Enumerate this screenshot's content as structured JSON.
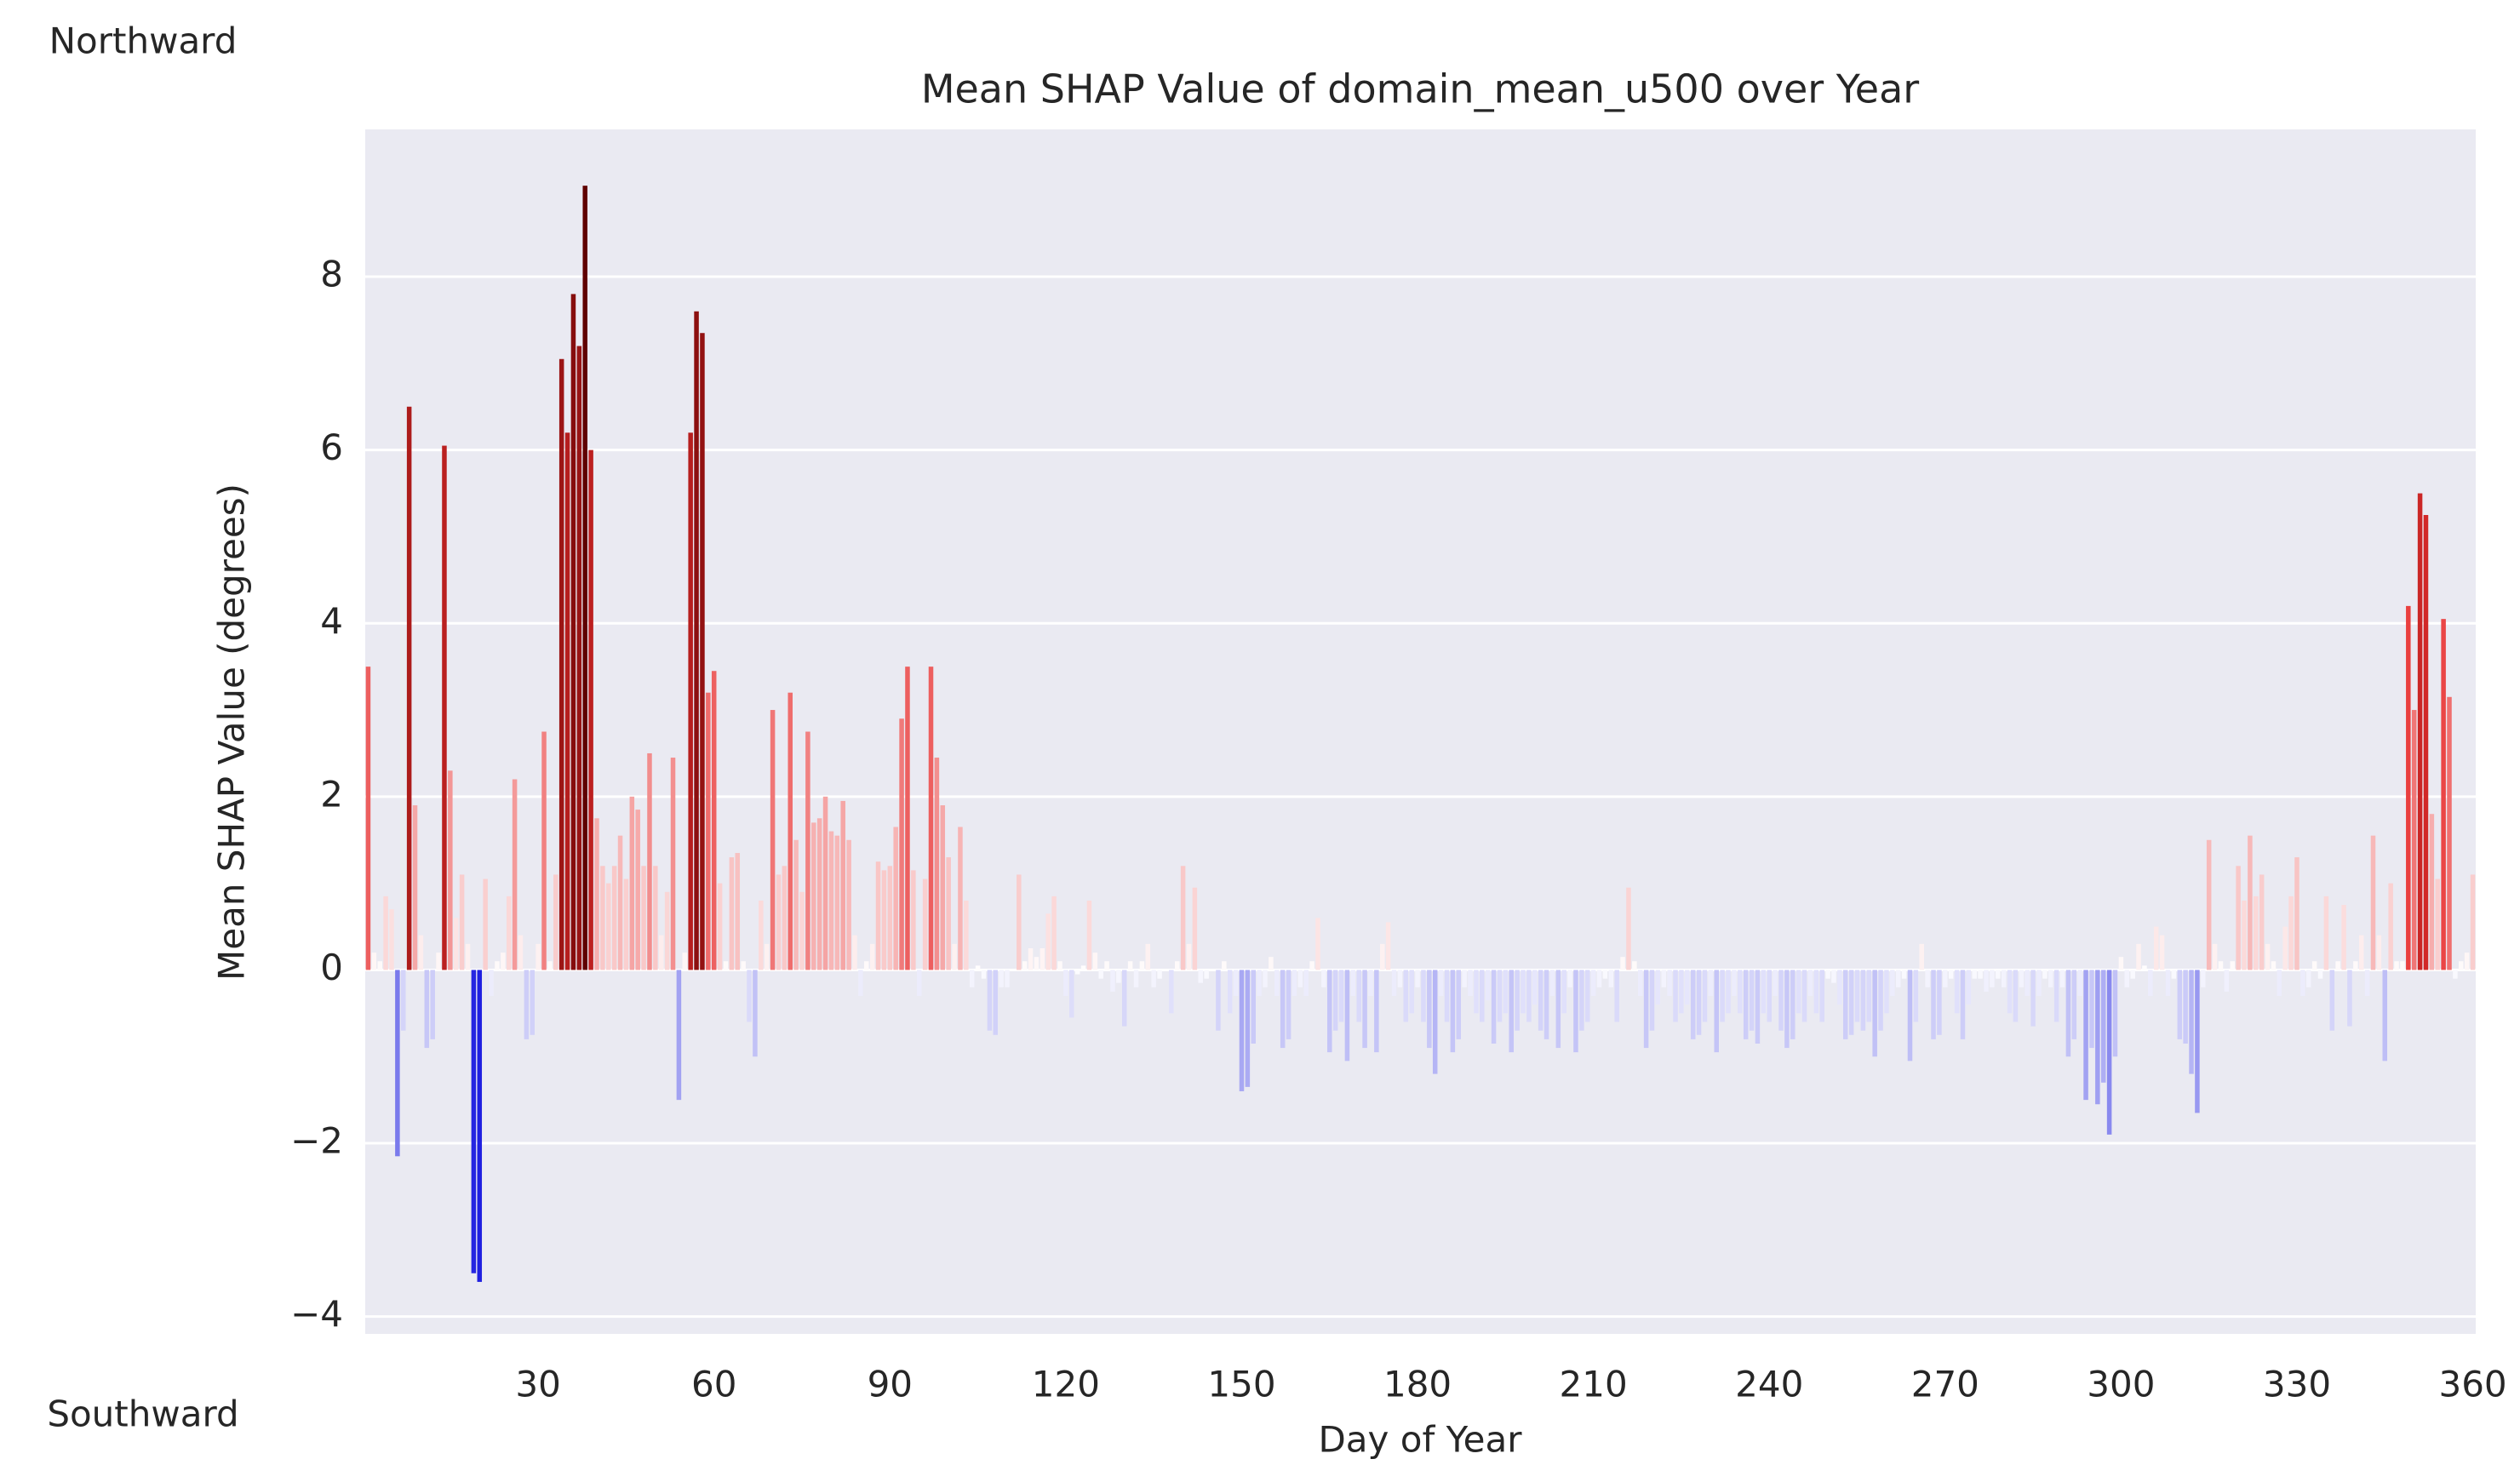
{
  "chart_data": {
    "type": "bar",
    "title": "Mean SHAP Value of domain_mean_u500 over Year",
    "x_label": "Day of Year",
    "y_label": "Mean SHAP Value (degrees)",
    "annotations": [
      "Northward",
      "Southward"
    ],
    "xlim": [
      0.5,
      360.5
    ],
    "ylim": [
      -4.2,
      9.7
    ],
    "xticks": [
      30,
      60,
      90,
      120,
      150,
      180,
      210,
      240,
      270,
      300,
      330,
      360
    ],
    "yticks": [
      {
        "value": -4,
        "label": "−4"
      },
      {
        "value": -2,
        "label": "−2"
      },
      0,
      2,
      4,
      6,
      8
    ],
    "grid": true,
    "colormap": [
      "#2020e0",
      "#ffffff",
      "#e83030",
      "#600000"
    ],
    "x": [
      1,
      2,
      3,
      4,
      5,
      6,
      7,
      8,
      9,
      10,
      11,
      12,
      13,
      14,
      15,
      16,
      17,
      18,
      19,
      20,
      21,
      22,
      23,
      24,
      25,
      26,
      27,
      28,
      29,
      30,
      31,
      32,
      33,
      34,
      35,
      36,
      37,
      38,
      39,
      40,
      41,
      42,
      43,
      44,
      45,
      46,
      47,
      48,
      49,
      50,
      51,
      52,
      53,
      54,
      55,
      56,
      57,
      58,
      59,
      60,
      61,
      62,
      63,
      64,
      65,
      66,
      67,
      68,
      69,
      70,
      71,
      72,
      73,
      74,
      75,
      76,
      77,
      78,
      79,
      80,
      81,
      82,
      83,
      84,
      85,
      86,
      87,
      88,
      89,
      90,
      91,
      92,
      93,
      94,
      95,
      96,
      97,
      98,
      99,
      100,
      101,
      102,
      103,
      104,
      105,
      106,
      107,
      108,
      109,
      110,
      111,
      112,
      113,
      114,
      115,
      116,
      117,
      118,
      119,
      120,
      121,
      122,
      123,
      124,
      125,
      126,
      127,
      128,
      129,
      130,
      131,
      132,
      133,
      134,
      135,
      136,
      137,
      138,
      139,
      140,
      141,
      142,
      143,
      144,
      145,
      146,
      147,
      148,
      149,
      150,
      151,
      152,
      153,
      154,
      155,
      156,
      157,
      158,
      159,
      160,
      161,
      162,
      163,
      164,
      165,
      166,
      167,
      168,
      169,
      170,
      171,
      172,
      173,
      174,
      175,
      176,
      177,
      178,
      179,
      180,
      181,
      182,
      183,
      184,
      185,
      186,
      187,
      188,
      189,
      190,
      191,
      192,
      193,
      194,
      195,
      196,
      197,
      198,
      199,
      200,
      201,
      202,
      203,
      204,
      205,
      206,
      207,
      208,
      209,
      210,
      211,
      212,
      213,
      214,
      215,
      216,
      217,
      218,
      219,
      220,
      221,
      222,
      223,
      224,
      225,
      226,
      227,
      228,
      229,
      230,
      231,
      232,
      233,
      234,
      235,
      236,
      237,
      238,
      239,
      240,
      241,
      242,
      243,
      244,
      245,
      246,
      247,
      248,
      249,
      250,
      251,
      252,
      253,
      254,
      255,
      256,
      257,
      258,
      259,
      260,
      261,
      262,
      263,
      264,
      265,
      266,
      267,
      268,
      269,
      270,
      271,
      272,
      273,
      274,
      275,
      276,
      277,
      278,
      279,
      280,
      281,
      282,
      283,
      284,
      285,
      286,
      287,
      288,
      289,
      290,
      291,
      292,
      293,
      294,
      295,
      296,
      297,
      298,
      299,
      300,
      301,
      302,
      303,
      304,
      305,
      306,
      307,
      308,
      309,
      310,
      311,
      312,
      313,
      314,
      315,
      316,
      317,
      318,
      319,
      320,
      321,
      322,
      323,
      324,
      325,
      326,
      327,
      328,
      329,
      330,
      331,
      332,
      333,
      334,
      335,
      336,
      337,
      338,
      339,
      340,
      341,
      342,
      343,
      344,
      345,
      346,
      347,
      348,
      349,
      350,
      351,
      352,
      353,
      354,
      355,
      356,
      357,
      358,
      359,
      360
    ],
    "values": [
      3.5,
      0.2,
      0.1,
      0.85,
      0.7,
      -2.15,
      -0.7,
      6.5,
      1.9,
      0.4,
      -0.9,
      -0.8,
      0.2,
      6.05,
      2.3,
      0.6,
      1.1,
      0.3,
      -3.5,
      -3.6,
      1.05,
      -0.3,
      0.1,
      0.2,
      0.85,
      2.2,
      0.4,
      -0.8,
      -0.75,
      0.3,
      2.75,
      0.1,
      1.1,
      7.05,
      6.2,
      7.8,
      7.2,
      9.05,
      6.0,
      1.75,
      1.2,
      1.0,
      1.2,
      1.55,
      1.05,
      2.0,
      1.85,
      1.2,
      2.5,
      1.2,
      0.4,
      0.9,
      2.45,
      -1.5,
      0.2,
      6.2,
      7.6,
      7.35,
      3.2,
      3.45,
      1.0,
      0.1,
      1.3,
      1.35,
      0.1,
      -0.6,
      -1.0,
      0.8,
      0.3,
      3.0,
      1.1,
      1.2,
      3.2,
      1.5,
      0.9,
      2.75,
      1.7,
      1.75,
      2.0,
      1.6,
      1.55,
      1.95,
      1.5,
      0.4,
      -0.3,
      0.1,
      0.3,
      1.25,
      1.15,
      1.2,
      1.65,
      2.9,
      3.5,
      1.15,
      -0.3,
      1.05,
      3.5,
      2.45,
      1.9,
      1.3,
      0.3,
      1.65,
      0.8,
      -0.2,
      0.05,
      -0.1,
      -0.7,
      -0.75,
      -0.2,
      -0.2,
      0.0,
      1.1,
      0.1,
      0.25,
      0.15,
      0.25,
      0.65,
      0.85,
      0.1,
      -0.3,
      -0.55,
      -0.05,
      0.05,
      0.8,
      0.2,
      -0.1,
      0.1,
      -0.25,
      -0.15,
      -0.65,
      0.1,
      -0.2,
      0.1,
      0.3,
      -0.2,
      -0.1,
      0.0,
      -0.5,
      0.1,
      1.2,
      0.3,
      0.95,
      -0.15,
      -0.1,
      0.0,
      -0.7,
      0.1,
      -0.5,
      -0.3,
      -1.4,
      -1.35,
      -0.85,
      -0.3,
      -0.2,
      0.15,
      -0.3,
      -0.9,
      -0.8,
      -0.3,
      -0.2,
      -0.3,
      0.1,
      0.6,
      -0.2,
      -0.95,
      -0.7,
      -0.6,
      -1.05,
      -0.3,
      -0.6,
      -0.9,
      -0.3,
      -0.95,
      0.3,
      0.55,
      -0.3,
      -0.2,
      -0.6,
      -0.5,
      -0.2,
      -0.6,
      -0.9,
      -1.2,
      -0.3,
      -0.6,
      -0.95,
      -0.8,
      -0.2,
      -0.3,
      -0.5,
      -0.6,
      -0.35,
      -0.85,
      -0.6,
      -0.5,
      -0.95,
      -0.7,
      -0.5,
      -0.6,
      -0.4,
      -0.7,
      -0.8,
      -0.3,
      -0.9,
      -0.5,
      -0.2,
      -0.95,
      -0.7,
      -0.6,
      -0.3,
      -0.2,
      -0.1,
      -0.2,
      -0.6,
      0.15,
      0.95,
      0.1,
      -0.3,
      -0.9,
      -0.7,
      -0.4,
      -0.2,
      -0.3,
      -0.6,
      -0.5,
      -0.4,
      -0.8,
      -0.75,
      -0.6,
      -0.3,
      -0.95,
      -0.6,
      -0.5,
      -0.3,
      -0.5,
      -0.8,
      -0.7,
      -0.85,
      -0.5,
      -0.6,
      -0.3,
      -0.7,
      -0.9,
      -0.8,
      -0.5,
      -0.6,
      -0.3,
      -0.5,
      -0.6,
      -0.1,
      -0.15,
      -0.4,
      -0.8,
      -0.75,
      -0.6,
      -0.7,
      -0.6,
      -1.0,
      -0.7,
      -0.5,
      -0.3,
      -0.2,
      -0.1,
      -1.05,
      -0.6,
      0.3,
      -0.2,
      -0.8,
      -0.75,
      -0.2,
      -0.1,
      -0.5,
      -0.8,
      -0.4,
      -0.1,
      -0.1,
      -0.25,
      -0.2,
      -0.1,
      -0.2,
      -0.5,
      -0.6,
      -0.2,
      -0.3,
      -0.65,
      -0.3,
      -0.1,
      -0.2,
      -0.6,
      -0.2,
      -1.0,
      -0.8,
      -0.3,
      -1.5,
      -0.9,
      -1.55,
      -1.3,
      -1.9,
      -1.0,
      0.15,
      -0.2,
      -0.1,
      0.3,
      0.05,
      -0.3,
      0.5,
      0.4,
      -0.3,
      -0.1,
      -0.8,
      -0.85,
      -1.2,
      -1.65,
      -0.2,
      1.5,
      0.3,
      0.1,
      -0.25,
      0.1,
      1.2,
      0.8,
      1.55,
      0.85,
      1.1,
      0.3,
      0.1,
      -0.3,
      0.5,
      0.85,
      1.3,
      -0.3,
      -0.2,
      0.1,
      -0.1,
      0.85,
      -0.7,
      0.1,
      0.75,
      -0.65,
      0.1,
      0.4,
      -0.3,
      1.55,
      0.4,
      -1.05,
      1.0,
      0.1,
      0.1,
      4.2,
      3.0,
      5.5,
      5.25,
      1.8,
      1.05,
      4.05,
      3.15,
      -0.1,
      0.1,
      0.2,
      1.1
    ]
  }
}
